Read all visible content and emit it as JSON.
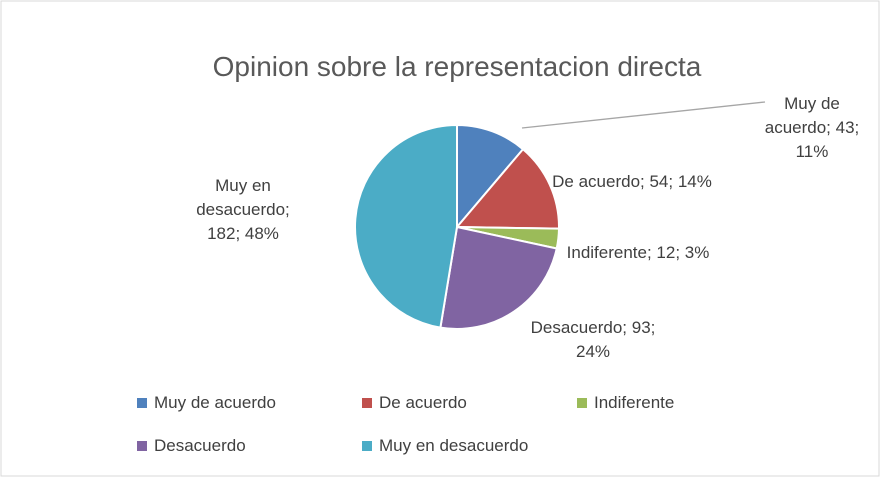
{
  "chart_data": {
    "type": "pie",
    "title": "Opinion sobre la representacion directa",
    "categories": [
      "Muy de acuerdo",
      "De acuerdo",
      "Indiferente",
      "Desacuerdo",
      "Muy en desacuerdo"
    ],
    "values": [
      43,
      54,
      12,
      93,
      182
    ],
    "value_labels": [
      "Muy de acuerdo; 43; 11%",
      "De acuerdo; 54; 14%",
      "Indiferente; 12; 3%",
      "Desacuerdo; 93; 24%",
      "Muy en desacuerdo; 182; 48%"
    ],
    "colors": [
      "#4f81bd",
      "#c0504d",
      "#9bbb59",
      "#8064a2",
      "#4bacc6"
    ],
    "legend": "bottom"
  }
}
